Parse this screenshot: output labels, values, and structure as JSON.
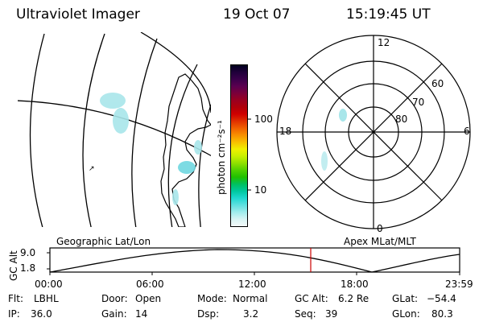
{
  "header": {
    "instrument": "Ultraviolet Imager",
    "date": "19 Oct 07",
    "time": "15:19:45 UT"
  },
  "colorbar": {
    "label": "photon cm⁻²s⁻¹",
    "ticks": [
      "100",
      "10"
    ],
    "colors_top_to_bottom": [
      "#000020",
      "#20003a",
      "#3a004a",
      "#5a0050",
      "#7a003a",
      "#9a0020",
      "#b0000a",
      "#d00000",
      "#e03000",
      "#f06000",
      "#f89000",
      "#f8c000",
      "#f0f000",
      "#c8f000",
      "#90e000",
      "#50d000",
      "#20c000",
      "#00c060",
      "#00c8a0",
      "#20d8d0",
      "#60e0e0",
      "#a0ecec",
      "#d8f4f4",
      "#f4fafa"
    ]
  },
  "polar_plot": {
    "lat_labels": [
      "60",
      "70",
      "80"
    ],
    "mlt_labels": {
      "top": "12",
      "left": "18",
      "right": "6",
      "bottom": "0"
    }
  },
  "map_labels": {
    "left": "Geographic Lat/Lon",
    "right": "Apex MLat/MLT"
  },
  "altitude_plot": {
    "ylabel": "GC Alt",
    "yticks": [
      "9.0",
      "1.8"
    ],
    "xticks": [
      "00:00",
      "06:00",
      "12:00",
      "18:00",
      "23:59"
    ],
    "current_time_marker": "15:19",
    "marker_color": "#cc0000"
  },
  "info": {
    "rows": [
      [
        {
          "label": "Flt:",
          "value": "LBHL"
        },
        {
          "label": "Door:",
          "value": "Open"
        },
        {
          "label": "Mode:",
          "value": "Normal"
        },
        {
          "label": "GC Alt:",
          "value": "6.2 Re"
        },
        {
          "label": "GLat:",
          "value": "−54.4"
        }
      ],
      [
        {
          "label": "IP:",
          "value": "36.0"
        },
        {
          "label": "Gain:",
          "value": "14"
        },
        {
          "label": "Dsp:",
          "value": "3.2"
        },
        {
          "label": "Seq:",
          "value": "39"
        },
        {
          "label": "GLon:",
          "value": "80.3"
        }
      ]
    ]
  }
}
